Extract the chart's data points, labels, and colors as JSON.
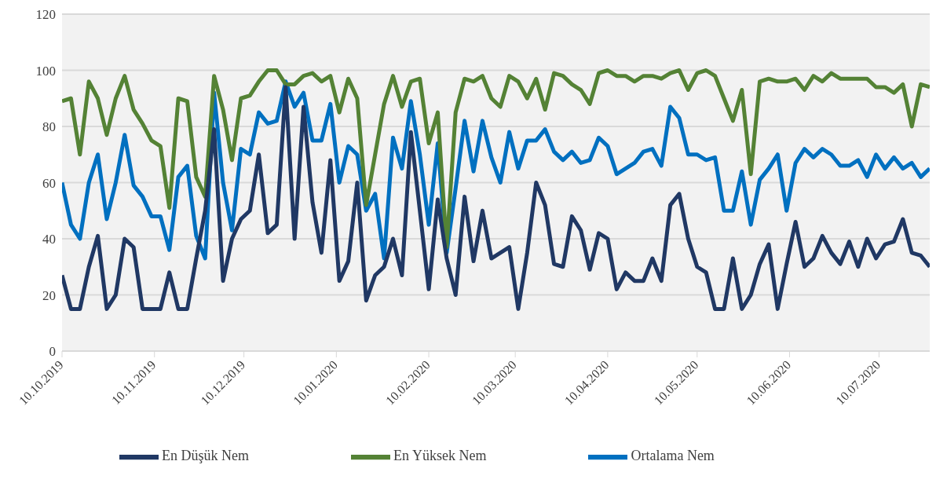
{
  "chart_data": {
    "type": "line",
    "x": [
      "2019-10-10",
      "2019-10-13",
      "2019-10-16",
      "2019-10-19",
      "2019-10-22",
      "2019-10-25",
      "2019-10-28",
      "2019-10-31",
      "2019-11-03",
      "2019-11-06",
      "2019-11-09",
      "2019-11-12",
      "2019-11-15",
      "2019-11-18",
      "2019-11-21",
      "2019-11-24",
      "2019-11-27",
      "2019-11-30",
      "2019-12-03",
      "2019-12-06",
      "2019-12-09",
      "2019-12-12",
      "2019-12-15",
      "2019-12-18",
      "2019-12-21",
      "2019-12-24",
      "2019-12-27",
      "2019-12-30",
      "2020-01-02",
      "2020-01-05",
      "2020-01-08",
      "2020-01-11",
      "2020-01-14",
      "2020-01-17",
      "2020-01-20",
      "2020-01-23",
      "2020-01-26",
      "2020-01-29",
      "2020-02-01",
      "2020-02-04",
      "2020-02-07",
      "2020-02-10",
      "2020-02-13",
      "2020-02-16",
      "2020-02-19",
      "2020-02-22",
      "2020-02-25",
      "2020-02-28",
      "2020-03-02",
      "2020-03-05",
      "2020-03-08",
      "2020-03-11",
      "2020-03-14",
      "2020-03-17",
      "2020-03-20",
      "2020-03-23",
      "2020-03-26",
      "2020-03-29",
      "2020-04-01",
      "2020-04-04",
      "2020-04-07",
      "2020-04-10",
      "2020-04-13",
      "2020-04-16",
      "2020-04-19",
      "2020-04-22",
      "2020-04-25",
      "2020-04-28",
      "2020-05-01",
      "2020-05-04",
      "2020-05-07",
      "2020-05-10",
      "2020-05-13",
      "2020-05-16",
      "2020-05-19",
      "2020-05-22",
      "2020-05-25",
      "2020-05-28",
      "2020-05-31",
      "2020-06-03",
      "2020-06-06",
      "2020-06-09",
      "2020-06-12",
      "2020-06-15",
      "2020-06-18",
      "2020-06-21",
      "2020-06-24",
      "2020-06-27",
      "2020-06-30",
      "2020-07-03",
      "2020-07-06",
      "2020-07-09",
      "2020-07-12",
      "2020-07-15",
      "2020-07-18",
      "2020-07-21",
      "2020-07-24",
      "2020-07-27"
    ],
    "series": [
      {
        "name": "Ortalama Nem",
        "color": "#0070c0",
        "values": [
          60,
          45,
          40,
          60,
          70,
          47,
          60,
          77,
          59,
          55,
          48,
          48,
          36,
          62,
          66,
          41,
          33,
          92,
          60,
          43,
          72,
          70,
          85,
          81,
          82,
          96,
          87,
          92,
          75,
          75,
          88,
          60,
          73,
          70,
          50,
          56,
          33,
          76,
          65,
          89,
          70,
          45,
          74,
          35,
          58,
          82,
          64,
          82,
          69,
          60,
          78,
          65,
          75,
          75,
          79,
          71,
          68,
          71,
          67,
          68,
          76,
          73,
          63,
          65,
          67,
          71,
          72,
          66,
          87,
          83,
          70,
          70,
          68,
          69,
          50,
          50,
          64,
          45,
          61,
          65,
          70,
          50,
          67,
          72,
          69,
          72,
          70,
          66,
          66,
          68,
          62,
          70,
          65,
          69,
          65,
          67,
          62,
          65
        ]
      },
      {
        "name": "En Yüksek Nem",
        "color": "#548235",
        "values": [
          89,
          90,
          70,
          96,
          90,
          77,
          90,
          98,
          86,
          81,
          75,
          73,
          51,
          90,
          89,
          62,
          55,
          98,
          86,
          68,
          90,
          91,
          96,
          100,
          100,
          95,
          95,
          98,
          99,
          96,
          98,
          85,
          97,
          90,
          52,
          70,
          88,
          98,
          87,
          96,
          97,
          74,
          85,
          37,
          85,
          97,
          96,
          98,
          90,
          87,
          98,
          96,
          90,
          97,
          86,
          99,
          98,
          95,
          93,
          88,
          99,
          100,
          98,
          98,
          96,
          98,
          98,
          97,
          99,
          100,
          93,
          99,
          100,
          98,
          90,
          82,
          93,
          63,
          96,
          97,
          96,
          96,
          97,
          93,
          98,
          96,
          99,
          97,
          97,
          97,
          97,
          94,
          94,
          92,
          95,
          80,
          95,
          94
        ]
      },
      {
        "name": "En Düşük Nem",
        "color": "#203864",
        "values": [
          27,
          15,
          15,
          30,
          41,
          15,
          20,
          40,
          37,
          15,
          15,
          15,
          28,
          15,
          15,
          33,
          50,
          79,
          25,
          40,
          47,
          50,
          70,
          42,
          45,
          94,
          40,
          87,
          53,
          35,
          68,
          25,
          32,
          60,
          18,
          27,
          30,
          40,
          27,
          78,
          50,
          22,
          54,
          33,
          20,
          55,
          32,
          50,
          33,
          35,
          37,
          15,
          35,
          60,
          52,
          31,
          30,
          48,
          43,
          29,
          42,
          40,
          22,
          28,
          25,
          25,
          33,
          25,
          52,
          56,
          40,
          30,
          28,
          15,
          15,
          33,
          15,
          20,
          31,
          38,
          15,
          31,
          46,
          30,
          33,
          41,
          35,
          31,
          39,
          30,
          40,
          33,
          38,
          39,
          47,
          35,
          34,
          30
        ]
      }
    ],
    "xlim": [
      "2019-10-10",
      "2020-07-27"
    ],
    "xticks": [
      {
        "value": "2019-10-10",
        "label": "10.10.2019"
      },
      {
        "value": "2019-11-10",
        "label": "10.11.2019"
      },
      {
        "value": "2019-12-10",
        "label": "10.12.2019"
      },
      {
        "value": "2020-01-10",
        "label": "10.01.2020"
      },
      {
        "value": "2020-02-10",
        "label": "10.02.2020"
      },
      {
        "value": "2020-03-10",
        "label": "10.03.2020"
      },
      {
        "value": "2020-04-10",
        "label": "10.04.2020"
      },
      {
        "value": "2020-05-10",
        "label": "10.05.2020"
      },
      {
        "value": "2020-06-10",
        "label": "10.06.2020"
      },
      {
        "value": "2020-07-10",
        "label": "10.07.2020"
      }
    ],
    "ylim": [
      0,
      120
    ],
    "yticks": [
      0,
      20,
      40,
      60,
      80,
      100,
      120
    ],
    "grid": "y",
    "legend": "bottom",
    "marker": "none",
    "line_style": "solid"
  }
}
